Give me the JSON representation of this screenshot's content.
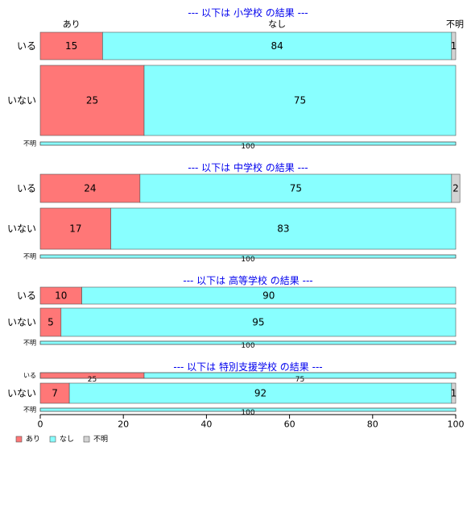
{
  "chart_data": {
    "type": "bar",
    "orientation": "horizontal",
    "stacked": true,
    "categories_legend": [
      "あり",
      "なし",
      "不明"
    ],
    "colors": {
      "あり": "#ff7777",
      "なし": "#88ffff",
      "不明": "#d3d3d3"
    },
    "header_labels": [
      "あり",
      "なし",
      "不明"
    ],
    "xlim": [
      0,
      100
    ],
    "xticks": [
      0,
      20,
      40,
      60,
      80,
      100
    ],
    "legend_position": "bottom-left",
    "panels": [
      {
        "title": "--- 以下は 小学校 の結果 ---",
        "rows": [
          {
            "label": "いる",
            "values": [
              15,
              84,
              1
            ]
          },
          {
            "label": "いない",
            "values": [
              25,
              75,
              0
            ]
          },
          {
            "label": "不明",
            "values": [
              0,
              100,
              0
            ]
          }
        ]
      },
      {
        "title": "--- 以下は 中学校 の結果 ---",
        "rows": [
          {
            "label": "いる",
            "values": [
              24,
              75,
              2
            ]
          },
          {
            "label": "いない",
            "values": [
              17,
              83,
              0
            ]
          },
          {
            "label": "不明",
            "values": [
              0,
              100,
              0
            ]
          }
        ]
      },
      {
        "title": "--- 以下は 高等学校 の結果 ---",
        "rows": [
          {
            "label": "いる",
            "values": [
              10,
              90,
              0
            ]
          },
          {
            "label": "いない",
            "values": [
              5,
              95,
              0
            ]
          },
          {
            "label": "不明",
            "values": [
              0,
              100,
              0
            ]
          }
        ]
      },
      {
        "title": "--- 以下は 特別支援学校 の結果 ---",
        "rows": [
          {
            "label": "いる",
            "values": [
              25,
              75,
              0
            ]
          },
          {
            "label": "いない",
            "values": [
              7,
              92,
              1
            ]
          },
          {
            "label": "不明",
            "values": [
              0,
              100,
              0
            ]
          }
        ]
      }
    ]
  }
}
